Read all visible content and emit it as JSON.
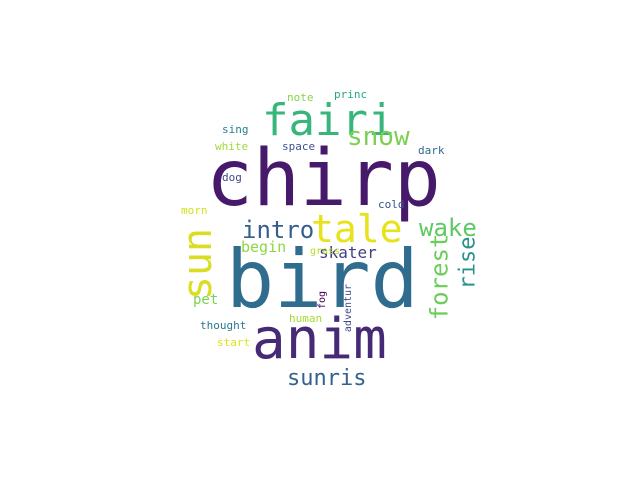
{
  "word_cloud": {
    "words": {
      "chirp": {
        "text": "chirp",
        "color": "#46196a"
      },
      "bird": {
        "text": "bird",
        "color": "#2f6c8e"
      },
      "anim": {
        "text": "anim",
        "color": "#462a76"
      },
      "fairi": {
        "text": "fairi",
        "color": "#37b57a"
      },
      "tale": {
        "text": "tale",
        "color": "#e6e31a"
      },
      "sun": {
        "text": "sun",
        "color": "#d9de20"
      },
      "intro": {
        "text": "intro",
        "color": "#355e8d"
      },
      "snow": {
        "text": "snow",
        "color": "#7ad151"
      },
      "wake": {
        "text": "wake",
        "color": "#5ec962"
      },
      "forest": {
        "text": "forest",
        "color": "#6ccd5a"
      },
      "rise": {
        "text": "rise",
        "color": "#2a918b"
      },
      "sunris": {
        "text": "sunris",
        "color": "#33638d"
      },
      "begin": {
        "text": "begin",
        "color": "#8fd744"
      },
      "skater": {
        "text": "skater",
        "color": "#433e85"
      },
      "pet": {
        "text": "pet",
        "color": "#7ad151"
      },
      "note": {
        "text": "note",
        "color": "#84d44b"
      },
      "princ": {
        "text": "princ",
        "color": "#22a785"
      },
      "sing": {
        "text": "sing",
        "color": "#26818e"
      },
      "white": {
        "text": "white",
        "color": "#a0da39"
      },
      "space": {
        "text": "space",
        "color": "#3b528b"
      },
      "dark": {
        "text": "dark",
        "color": "#2f6c8e"
      },
      "dog": {
        "text": "dog",
        "color": "#3e4a89"
      },
      "morn": {
        "text": "morn",
        "color": "#d2e21b"
      },
      "cold": {
        "text": "cold",
        "color": "#3b528b"
      },
      "grass": {
        "text": "grass",
        "color": "#b5de2b"
      },
      "fog": {
        "text": "fog",
        "color": "#440154"
      },
      "adventur": {
        "text": "adventur",
        "color": "#3e4a89"
      },
      "human": {
        "text": "human",
        "color": "#a5db36"
      },
      "thought": {
        "text": "thought",
        "color": "#2a788e"
      },
      "start": {
        "text": "start",
        "color": "#dde318"
      }
    }
  }
}
